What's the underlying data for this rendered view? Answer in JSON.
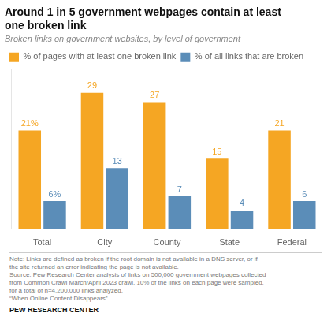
{
  "chart_data": {
    "type": "bar",
    "title": [
      "Around 1 in 5 government webpages contain at least",
      "one broken link"
    ],
    "subtitle": "Broken links on government websites, by level of government",
    "categories": [
      "Total",
      "City",
      "County",
      "State",
      "Federal"
    ],
    "series": [
      {
        "name": "% of pages with at least one broken link",
        "color": "#F5A623",
        "values": [
          21,
          29,
          27,
          15,
          21
        ],
        "value_labels": [
          "21%",
          "29",
          "27",
          "15",
          "21"
        ]
      },
      {
        "name": "% of all links that are broken",
        "color": "#5B8DB8",
        "values": [
          6,
          13,
          7,
          4,
          6
        ],
        "value_labels": [
          "6%",
          "13",
          "7",
          "4",
          "6"
        ]
      }
    ],
    "ylim": [
      0,
      34
    ],
    "tick_labels": "x",
    "grid": false,
    "legend": "top",
    "data_labels": true,
    "notes": [
      "Note: Links are defined as broken if the root domain is not available in a DNS server, or if",
      "the site returned an error indicating the page is not available.",
      "Source: Pew Research Center analysis of links on 500,000 government webpages collected",
      "from Common Crawl March/April 2023 crawl. 10% of the links on each page were sampled,",
      "for a total of n=4,200,000 links analyzed.",
      "“When Online Content Disappears”"
    ],
    "footer": "PEW RESEARCH CENTER"
  }
}
